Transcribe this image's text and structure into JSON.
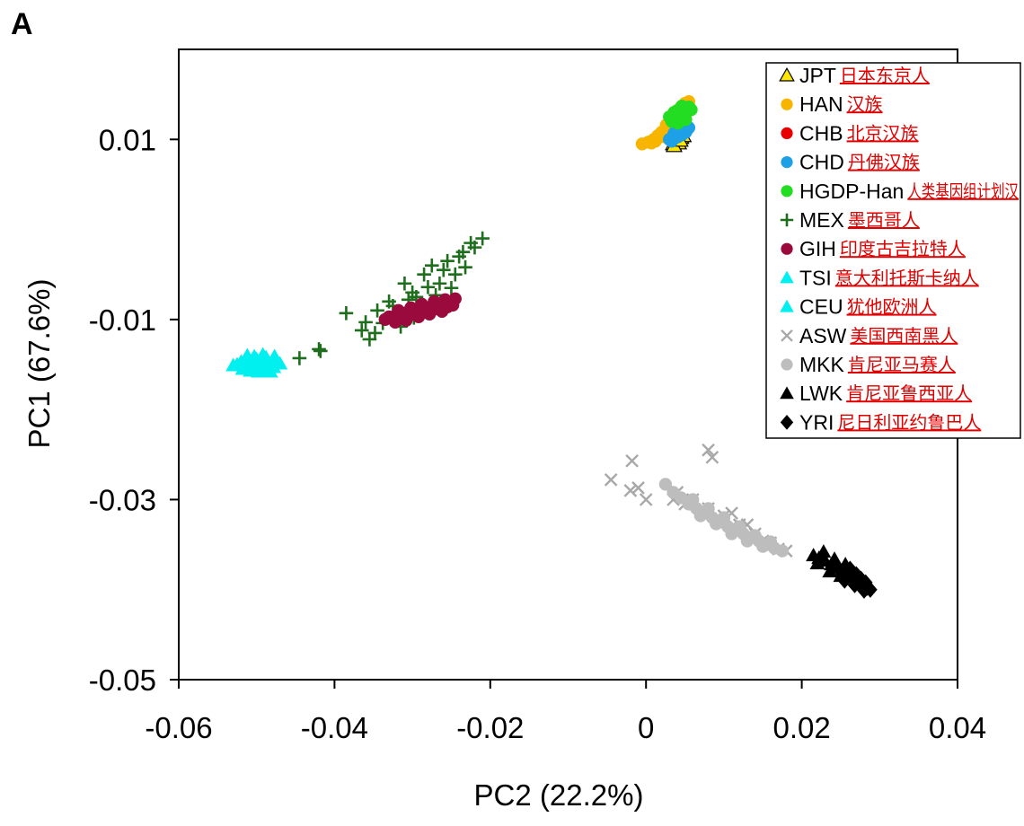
{
  "panel_label": "A",
  "chart_data": {
    "type": "scatter",
    "title": "",
    "xlabel": "PC2 (22.2%)",
    "ylabel": "PC1 (67.6%)",
    "xlim": [
      -0.06,
      0.04
    ],
    "ylim": [
      -0.05,
      0.02
    ],
    "x_ticks": [
      -0.06,
      -0.04,
      -0.02,
      0,
      0.02,
      0.04
    ],
    "x_tick_labels": [
      "-0.06",
      "-0.04",
      "-0.02",
      "0",
      "0.02",
      "0.04"
    ],
    "y_ticks": [
      0.01,
      -0.01,
      -0.03,
      -0.05
    ],
    "y_tick_labels": [
      "0.01",
      "-0.01",
      "-0.03",
      "-0.05"
    ],
    "grid": false,
    "legend_position": "top-right",
    "series": [
      {
        "name": "JPT",
        "label_cn": "日本东京人",
        "color": "#ffe600",
        "marker": "triangle-outline",
        "points": [
          [
            0.0035,
            0.0095
          ],
          [
            0.004,
            0.0098
          ],
          [
            0.0045,
            0.0102
          ],
          [
            0.0038,
            0.01
          ],
          [
            0.0042,
            0.0096
          ],
          [
            0.0048,
            0.0104
          ],
          [
            0.0036,
            0.0093
          ],
          [
            0.0044,
            0.0099
          ]
        ]
      },
      {
        "name": "HAN",
        "label_cn": "汉族",
        "color": "#f7b500",
        "marker": "circle",
        "points": [
          [
            -0.0005,
            0.0095
          ],
          [
            0.0003,
            0.0097
          ],
          [
            0.001,
            0.01
          ],
          [
            0.0015,
            0.0104
          ],
          [
            0.002,
            0.0108
          ],
          [
            0.0025,
            0.0112
          ],
          [
            0.003,
            0.0118
          ],
          [
            0.0035,
            0.0124
          ],
          [
            0.004,
            0.013
          ],
          [
            0.0045,
            0.0136
          ],
          [
            0.005,
            0.014
          ],
          [
            0.0055,
            0.0142
          ],
          [
            0.0012,
            0.0098
          ],
          [
            0.0022,
            0.0103
          ],
          [
            0.0028,
            0.011
          ],
          [
            0.0033,
            0.0114
          ],
          [
            0.0038,
            0.012
          ],
          [
            0.0043,
            0.0125
          ],
          [
            0.0048,
            0.0131
          ],
          [
            0.0053,
            0.0137
          ],
          [
            0.0018,
            0.0106
          ],
          [
            0.0026,
            0.0116
          ],
          [
            0.0036,
            0.0127
          ],
          [
            0.0046,
            0.0134
          ],
          [
            0.0007,
            0.0096
          ]
        ]
      },
      {
        "name": "CHB",
        "label_cn": "北京汉族",
        "color": "#e80000",
        "marker": "circle",
        "points": [
          [
            0.004,
            0.0118
          ],
          [
            0.0045,
            0.0122
          ],
          [
            0.005,
            0.0126
          ],
          [
            0.0042,
            0.0114
          ],
          [
            0.0048,
            0.012
          ]
        ]
      },
      {
        "name": "CHD",
        "label_cn": "丹佛汉族",
        "color": "#1ea0e6",
        "marker": "circle",
        "points": [
          [
            0.003,
            0.01
          ],
          [
            0.0035,
            0.0104
          ],
          [
            0.004,
            0.0108
          ],
          [
            0.0045,
            0.011
          ],
          [
            0.005,
            0.0112
          ],
          [
            0.0055,
            0.0113
          ],
          [
            0.0033,
            0.0098
          ],
          [
            0.0038,
            0.0102
          ],
          [
            0.0043,
            0.0106
          ],
          [
            0.0048,
            0.0109
          ],
          [
            0.0053,
            0.0111
          ],
          [
            0.0036,
            0.0107
          ],
          [
            0.0046,
            0.0105
          ],
          [
            0.0041,
            0.0103
          ],
          [
            0.0051,
            0.0108
          ]
        ]
      },
      {
        "name": "HGDP-Han",
        "label_cn": "人类基因组计划汉",
        "color": "#22dd22",
        "marker": "circle",
        "points": [
          [
            0.003,
            0.0125
          ],
          [
            0.0035,
            0.0128
          ],
          [
            0.004,
            0.0132
          ],
          [
            0.0045,
            0.0134
          ],
          [
            0.005,
            0.0135
          ],
          [
            0.0055,
            0.0136
          ],
          [
            0.0033,
            0.012
          ],
          [
            0.0038,
            0.0124
          ],
          [
            0.0043,
            0.0128
          ],
          [
            0.0048,
            0.013
          ],
          [
            0.0053,
            0.0131
          ],
          [
            0.0058,
            0.0133
          ],
          [
            0.0036,
            0.013
          ],
          [
            0.0046,
            0.0137
          ],
          [
            0.0041,
            0.0118
          ],
          [
            0.0051,
            0.0122
          ]
        ]
      },
      {
        "name": "MEX",
        "label_cn": "墨西哥人",
        "color": "#1e6e1e",
        "marker": "plus",
        "points": [
          [
            -0.042,
            -0.0133
          ],
          [
            -0.0418,
            -0.0135
          ],
          [
            -0.0445,
            -0.0143
          ],
          [
            -0.0385,
            -0.0093
          ],
          [
            -0.036,
            -0.0103
          ],
          [
            -0.0355,
            -0.0122
          ],
          [
            -0.0365,
            -0.0112
          ],
          [
            -0.0345,
            -0.009
          ],
          [
            -0.033,
            -0.008
          ],
          [
            -0.0325,
            -0.0085
          ],
          [
            -0.031,
            -0.006
          ],
          [
            -0.03,
            -0.007
          ],
          [
            -0.0295,
            -0.0075
          ],
          [
            -0.0285,
            -0.005
          ],
          [
            -0.0275,
            -0.004
          ],
          [
            -0.0265,
            -0.006
          ],
          [
            -0.0255,
            -0.0035
          ],
          [
            -0.0245,
            -0.005
          ],
          [
            -0.0235,
            -0.0025
          ],
          [
            -0.0225,
            -0.0015
          ],
          [
            -0.022,
            -0.002
          ],
          [
            -0.021,
            -0.001
          ],
          [
            -0.025,
            -0.0065
          ],
          [
            -0.027,
            -0.0073
          ],
          [
            -0.029,
            -0.0089
          ],
          [
            -0.032,
            -0.0096
          ],
          [
            -0.0338,
            -0.0104
          ],
          [
            -0.0305,
            -0.0078
          ],
          [
            -0.028,
            -0.0064
          ],
          [
            -0.026,
            -0.0045
          ],
          [
            -0.024,
            -0.003
          ],
          [
            -0.0315,
            -0.0108
          ],
          [
            -0.0298,
            -0.0098
          ],
          [
            -0.0348,
            -0.0115
          ],
          [
            -0.0278,
            -0.009
          ],
          [
            -0.0232,
            -0.0042
          ]
        ]
      },
      {
        "name": "GIH",
        "label_cn": "印度古吉拉特人",
        "color": "#9b0a3c",
        "marker": "circle",
        "points": [
          [
            -0.0335,
            -0.01
          ],
          [
            -0.033,
            -0.0097
          ],
          [
            -0.0325,
            -0.0099
          ],
          [
            -0.032,
            -0.0095
          ],
          [
            -0.0315,
            -0.0098
          ],
          [
            -0.031,
            -0.0093
          ],
          [
            -0.0305,
            -0.0096
          ],
          [
            -0.03,
            -0.0091
          ],
          [
            -0.0295,
            -0.0094
          ],
          [
            -0.029,
            -0.0089
          ],
          [
            -0.0285,
            -0.0092
          ],
          [
            -0.028,
            -0.0087
          ],
          [
            -0.0275,
            -0.009
          ],
          [
            -0.027,
            -0.0085
          ],
          [
            -0.0265,
            -0.0088
          ],
          [
            -0.026,
            -0.0083
          ],
          [
            -0.0255,
            -0.0086
          ],
          [
            -0.025,
            -0.008
          ],
          [
            -0.0245,
            -0.0077
          ],
          [
            -0.0322,
            -0.0103
          ],
          [
            -0.0308,
            -0.0101
          ],
          [
            -0.0292,
            -0.0097
          ],
          [
            -0.0278,
            -0.0094
          ],
          [
            -0.0262,
            -0.0091
          ],
          [
            -0.0248,
            -0.0084
          ],
          [
            -0.0318,
            -0.009
          ],
          [
            -0.0302,
            -0.0087
          ],
          [
            -0.0288,
            -0.0083
          ],
          [
            -0.0272,
            -0.008
          ],
          [
            -0.0258,
            -0.0078
          ]
        ]
      },
      {
        "name": "TSI",
        "label_cn": "意大利托斯卡纳人",
        "color": "#00f0f0",
        "marker": "triangle",
        "points": [
          [
            -0.0525,
            -0.015
          ],
          [
            -0.052,
            -0.0147
          ],
          [
            -0.0515,
            -0.0153
          ],
          [
            -0.051,
            -0.0146
          ],
          [
            -0.0505,
            -0.015
          ],
          [
            -0.05,
            -0.0144
          ],
          [
            -0.0495,
            -0.0152
          ],
          [
            -0.049,
            -0.0147
          ],
          [
            -0.0485,
            -0.0155
          ],
          [
            -0.048,
            -0.0149
          ],
          [
            -0.0475,
            -0.0145
          ],
          [
            -0.0512,
            -0.014
          ],
          [
            -0.0498,
            -0.0158
          ],
          [
            -0.0488,
            -0.0142
          ],
          [
            -0.0478,
            -0.0153
          ],
          [
            -0.0508,
            -0.0157
          ],
          [
            -0.0492,
            -0.0139
          ],
          [
            -0.0482,
            -0.0158
          ]
        ]
      },
      {
        "name": "CEU",
        "label_cn": "犹他欧洲人",
        "color": "#00f0f0",
        "marker": "triangle",
        "points": [
          [
            -0.053,
            -0.0151
          ],
          [
            -0.0518,
            -0.0155
          ],
          [
            -0.0503,
            -0.0141
          ],
          [
            -0.0493,
            -0.0156
          ],
          [
            -0.0486,
            -0.0148
          ],
          [
            -0.0477,
            -0.0141
          ],
          [
            -0.047,
            -0.0149
          ],
          [
            -0.0514,
            -0.0149
          ],
          [
            -0.0499,
            -0.0148
          ],
          [
            -0.0483,
            -0.0152
          ]
        ]
      },
      {
        "name": "ASW",
        "label_cn": "美国西南黑人",
        "color": "#a8a8a8",
        "marker": "x",
        "points": [
          [
            -0.0045,
            -0.0278
          ],
          [
            -0.0018,
            -0.0257
          ],
          [
            -0.002,
            -0.029
          ],
          [
            -0.001,
            -0.0287
          ],
          [
            0.0,
            -0.03
          ],
          [
            0.008,
            -0.0245
          ],
          [
            0.0085,
            -0.0253
          ],
          [
            0.004,
            -0.0292
          ],
          [
            0.006,
            -0.03
          ],
          [
            0.008,
            -0.031
          ],
          [
            0.01,
            -0.0318
          ],
          [
            0.012,
            -0.0328
          ],
          [
            0.014,
            -0.0338
          ],
          [
            0.016,
            -0.0348
          ],
          [
            0.018,
            -0.0357
          ],
          [
            0.005,
            -0.0305
          ],
          [
            0.007,
            -0.0312
          ],
          [
            0.009,
            -0.0322
          ],
          [
            0.011,
            -0.033
          ],
          [
            0.013,
            -0.034
          ],
          [
            0.015,
            -0.0346
          ],
          [
            0.017,
            -0.0355
          ],
          [
            0.011,
            -0.0315
          ],
          [
            0.013,
            -0.0328
          ],
          [
            0.0035,
            -0.03
          ]
        ]
      },
      {
        "name": "MKK",
        "label_cn": "肯尼亚马赛人",
        "color": "#bdbdbd",
        "marker": "circle",
        "points": [
          [
            0.0025,
            -0.0283
          ],
          [
            0.0035,
            -0.0292
          ],
          [
            0.0045,
            -0.0298
          ],
          [
            0.0055,
            -0.0305
          ],
          [
            0.0065,
            -0.031
          ],
          [
            0.0075,
            -0.0315
          ],
          [
            0.0085,
            -0.032
          ],
          [
            0.0095,
            -0.0325
          ],
          [
            0.0105,
            -0.033
          ],
          [
            0.0115,
            -0.0334
          ],
          [
            0.0125,
            -0.0338
          ],
          [
            0.0135,
            -0.0342
          ],
          [
            0.0145,
            -0.0346
          ],
          [
            0.0155,
            -0.035
          ],
          [
            0.0165,
            -0.0354
          ],
          [
            0.0175,
            -0.0357
          ],
          [
            0.006,
            -0.03
          ],
          [
            0.008,
            -0.031
          ],
          [
            0.01,
            -0.032
          ],
          [
            0.012,
            -0.033
          ],
          [
            0.014,
            -0.034
          ],
          [
            0.016,
            -0.0347
          ],
          [
            0.007,
            -0.0318
          ],
          [
            0.009,
            -0.0327
          ],
          [
            0.011,
            -0.0338
          ],
          [
            0.013,
            -0.0346
          ],
          [
            0.015,
            -0.0352
          ]
        ]
      },
      {
        "name": "LWK",
        "label_cn": "肯尼亚鲁西亚人",
        "color": "#000000",
        "marker": "triangle",
        "points": [
          [
            0.0215,
            -0.0362
          ],
          [
            0.0222,
            -0.0365
          ],
          [
            0.023,
            -0.0368
          ],
          [
            0.0238,
            -0.0372
          ],
          [
            0.0245,
            -0.0375
          ],
          [
            0.0252,
            -0.0378
          ],
          [
            0.026,
            -0.038
          ],
          [
            0.0268,
            -0.0384
          ],
          [
            0.0275,
            -0.0388
          ],
          [
            0.0228,
            -0.0358
          ],
          [
            0.0242,
            -0.0366
          ],
          [
            0.0256,
            -0.0372
          ],
          [
            0.022,
            -0.0371
          ],
          [
            0.0236,
            -0.038
          ],
          [
            0.025,
            -0.0385
          ]
        ]
      },
      {
        "name": "YRI",
        "label_cn": "尼日利亚约鲁巴人",
        "color": "#000000",
        "marker": "diamond",
        "points": [
          [
            0.024,
            -0.0375
          ],
          [
            0.025,
            -0.038
          ],
          [
            0.0258,
            -0.0384
          ],
          [
            0.0265,
            -0.0387
          ],
          [
            0.0272,
            -0.0391
          ],
          [
            0.0278,
            -0.0395
          ],
          [
            0.0284,
            -0.0398
          ],
          [
            0.0288,
            -0.04
          ],
          [
            0.0262,
            -0.0377
          ],
          [
            0.027,
            -0.0383
          ],
          [
            0.0276,
            -0.0388
          ],
          [
            0.0282,
            -0.0392
          ],
          [
            0.0255,
            -0.039
          ],
          [
            0.0268,
            -0.0395
          ],
          [
            0.028,
            -0.0401
          ]
        ]
      }
    ]
  }
}
